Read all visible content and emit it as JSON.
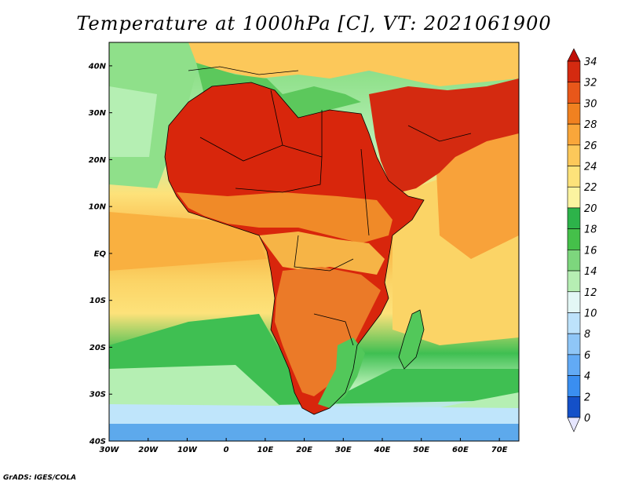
{
  "title": "Temperature at 1000hPa [C], VT: 2021061900",
  "credit": "GrADS: IGES/COLA",
  "map": {
    "lon_range": [
      -30,
      75
    ],
    "lat_range": [
      -40,
      45
    ],
    "lon_ticks": [
      "30W",
      "20W",
      "10W",
      "0",
      "10E",
      "20E",
      "30E",
      "40E",
      "50E",
      "60E",
      "70E"
    ],
    "lat_ticks": [
      "40N",
      "30N",
      "20N",
      "10N",
      "EQ",
      "10S",
      "20S",
      "30S",
      "40S"
    ],
    "variable": "Temperature at 1000hPa",
    "units": "C",
    "valid_time": "2021061900"
  },
  "colorbar": {
    "labels": [
      "34",
      "32",
      "30",
      "28",
      "26",
      "24",
      "22",
      "20",
      "18",
      "16",
      "14",
      "12",
      "10",
      "8",
      "6",
      "4",
      "2",
      "0"
    ],
    "colors": [
      "#1a0f8c",
      "#0b2aa6",
      "#1450c8",
      "#1e6edc",
      "#3a8ef0",
      "#62aaf5",
      "#8fc6f7",
      "#bde2fb",
      "#e3f7f5",
      "#b6eeb3",
      "#7dd67d",
      "#45c04a",
      "#2db34a",
      "#fbf3a0",
      "#fde27a",
      "#fcc85a",
      "#f9a63a",
      "#f08120",
      "#e8571a",
      "#d42a10",
      "#c01008"
    ]
  },
  "regions": [
    {
      "name": "ocean-south-far",
      "fill": "#5da9ec"
    },
    {
      "name": "ocean-south-cold",
      "fill": "#bfe5fb"
    },
    {
      "name": "ocean-south-cool",
      "fill": "#b5efb3"
    },
    {
      "name": "ocean-south-mid",
      "fill": "#3fbf52"
    },
    {
      "name": "ocean-atlantic-north",
      "fill": "#8fe08a"
    },
    {
      "name": "ocean-atlantic-warm",
      "fill": "#fde27a"
    },
    {
      "name": "ocean-gulf-guinea",
      "fill": "#f9b040"
    },
    {
      "name": "ocean-indian",
      "fill": "#fbd466"
    },
    {
      "name": "ocean-arabian",
      "fill": "#f8a23a"
    },
    {
      "name": "land-north-africa",
      "fill": "#d8260c"
    },
    {
      "name": "land-sahel",
      "fill": "#f08a28"
    },
    {
      "name": "land-arabia",
      "fill": "#d42a10"
    },
    {
      "name": "land-central-africa",
      "fill": "#f6b446"
    },
    {
      "name": "land-south-africa",
      "fill": "#eb7a28"
    },
    {
      "name": "land-mediterranean",
      "fill": "#5cc85c"
    },
    {
      "name": "land-europe",
      "fill": "#fcc85a"
    },
    {
      "name": "land-madagascar",
      "fill": "#52c85a"
    }
  ]
}
